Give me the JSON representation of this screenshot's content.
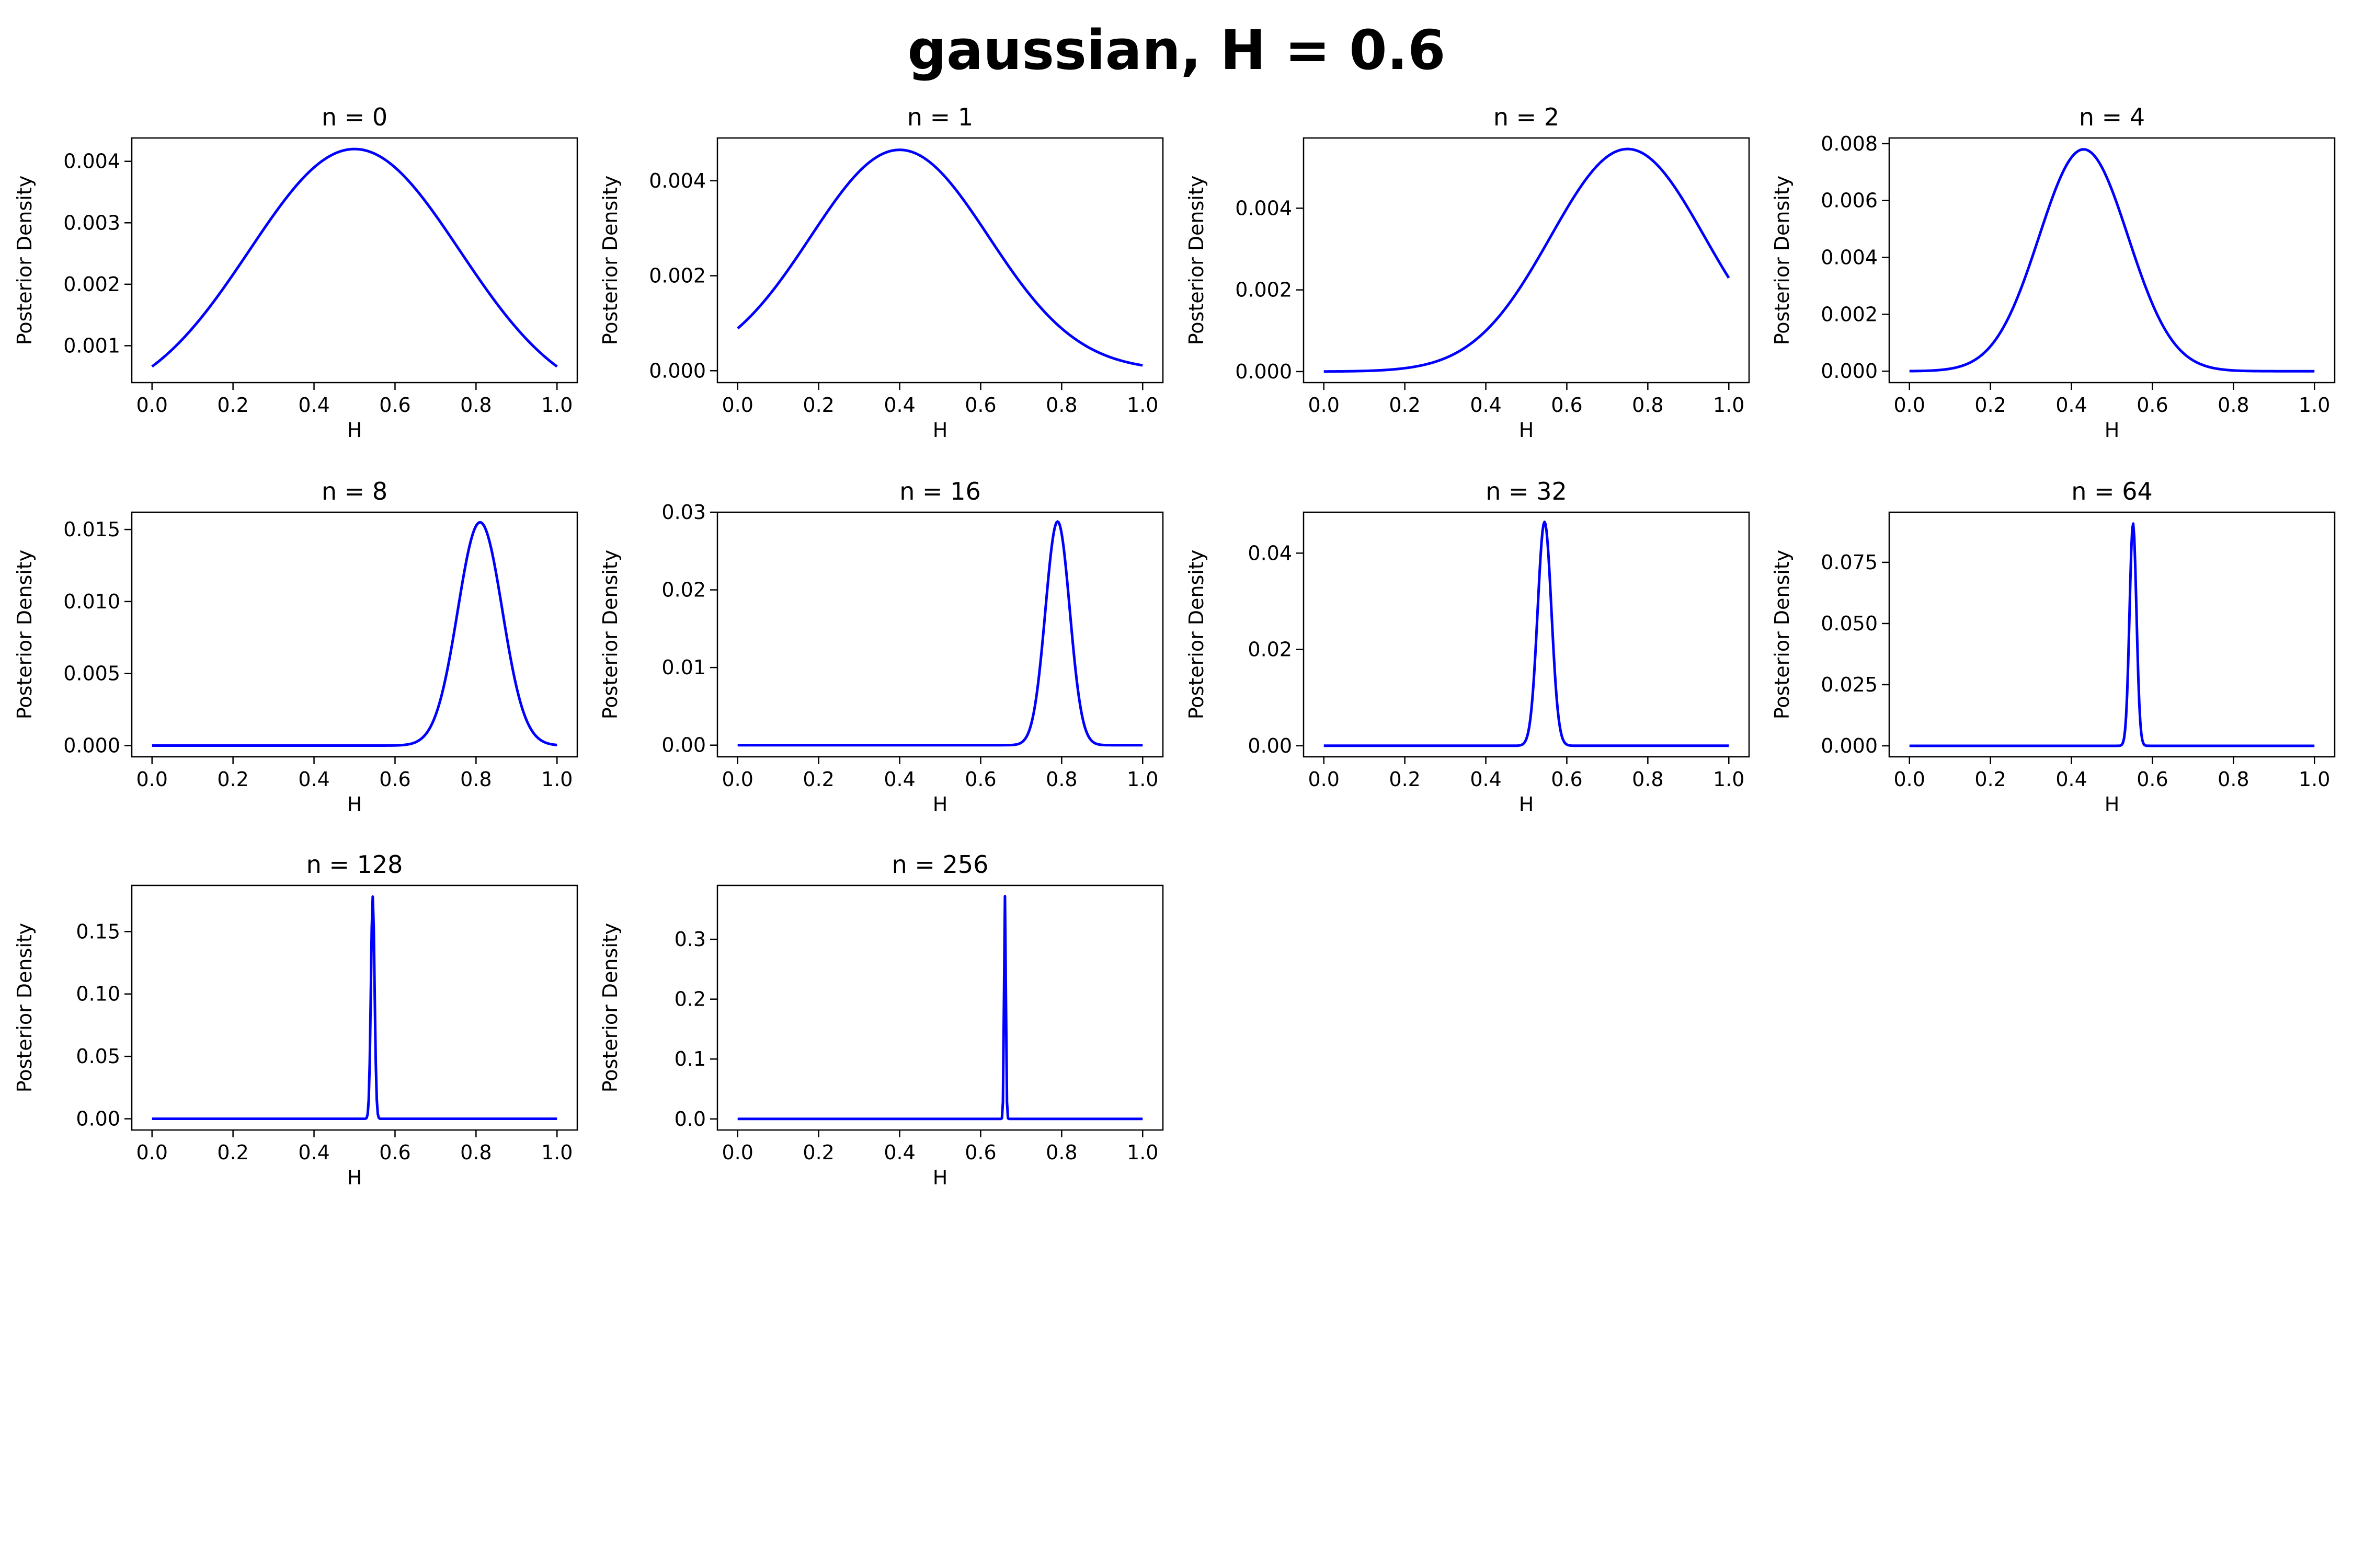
{
  "suptitle": "gaussian, H = 0.6",
  "colors": {
    "line": "#0000ff",
    "axis": "#000000",
    "background": "#ffffff"
  },
  "chart_data": [
    {
      "type": "line",
      "title": "n =  0",
      "xlabel": "H",
      "ylabel": "Posterior Density",
      "xlim": [
        -0.05,
        1.05
      ],
      "ylim": [
        0.0004,
        0.00438
      ],
      "xticks": [
        "0.0",
        "0.2",
        "0.4",
        "0.6",
        "0.8",
        "1.0"
      ],
      "yticks": [
        "0.001",
        "0.002",
        "0.003",
        "0.004"
      ],
      "curve": {
        "shape": "gaussian",
        "peak_x": 0.5,
        "peak_y": 0.0042,
        "sigma": 0.26,
        "baseline": 0
      }
    },
    {
      "type": "line",
      "title": "n =  1",
      "xlabel": "H",
      "ylabel": "Posterior Density",
      "xlim": [
        -0.05,
        1.05
      ],
      "ylim": [
        -0.00025,
        0.0049
      ],
      "xticks": [
        "0.0",
        "0.2",
        "0.4",
        "0.6",
        "0.8",
        "1.0"
      ],
      "yticks": [
        "0.000",
        "0.002",
        "0.004"
      ],
      "curve": {
        "shape": "gaussian",
        "peak_x": 0.4,
        "peak_y": 0.00465,
        "sigma": 0.22,
        "baseline": 0
      }
    },
    {
      "type": "line",
      "title": "n =  2",
      "xlabel": "H",
      "ylabel": "Posterior Density",
      "xlim": [
        -0.05,
        1.05
      ],
      "ylim": [
        -0.00027,
        0.00572
      ],
      "xticks": [
        "0.0",
        "0.2",
        "0.4",
        "0.6",
        "0.8",
        "1.0"
      ],
      "yticks": [
        "0.000",
        "0.002",
        "0.004"
      ],
      "curve": {
        "shape": "gaussian",
        "peak_x": 0.75,
        "peak_y": 0.00545,
        "sigma": 0.19,
        "baseline": 0
      }
    },
    {
      "type": "line",
      "title": "n =  4",
      "xlabel": "H",
      "ylabel": "Posterior Density",
      "xlim": [
        -0.05,
        1.05
      ],
      "ylim": [
        -0.0004,
        0.0082
      ],
      "xticks": [
        "0.0",
        "0.2",
        "0.4",
        "0.6",
        "0.8",
        "1.0"
      ],
      "yticks": [
        "0.000",
        "0.002",
        "0.004",
        "0.006",
        "0.008"
      ],
      "curve": {
        "shape": "gaussian",
        "peak_x": 0.43,
        "peak_y": 0.0078,
        "sigma": 0.11,
        "baseline": 0
      }
    },
    {
      "type": "line",
      "title": "n =  8",
      "xlabel": "H",
      "ylabel": "Posterior Density",
      "xlim": [
        -0.05,
        1.05
      ],
      "ylim": [
        -0.00078,
        0.0162
      ],
      "xticks": [
        "0.0",
        "0.2",
        "0.4",
        "0.6",
        "0.8",
        "1.0"
      ],
      "yticks": [
        "0.000",
        "0.005",
        "0.010",
        "0.015"
      ],
      "curve": {
        "shape": "gaussian",
        "peak_x": 0.81,
        "peak_y": 0.0155,
        "sigma": 0.055,
        "baseline": 0
      }
    },
    {
      "type": "line",
      "title": "n =  16",
      "xlabel": "H",
      "ylabel": "Posterior Density",
      "xlim": [
        -0.05,
        1.05
      ],
      "ylim": [
        -0.0015,
        0.03
      ],
      "xticks": [
        "0.0",
        "0.2",
        "0.4",
        "0.6",
        "0.8",
        "1.0"
      ],
      "yticks": [
        "0.00",
        "0.01",
        "0.02",
        "0.03"
      ],
      "curve": {
        "shape": "gaussian",
        "peak_x": 0.79,
        "peak_y": 0.0288,
        "sigma": 0.03,
        "baseline": 0
      }
    },
    {
      "type": "line",
      "title": "n =  32",
      "xlabel": "H",
      "ylabel": "Posterior Density",
      "xlim": [
        -0.05,
        1.05
      ],
      "ylim": [
        -0.0023,
        0.0485
      ],
      "xticks": [
        "0.0",
        "0.2",
        "0.4",
        "0.6",
        "0.8",
        "1.0"
      ],
      "yticks": [
        "0.00",
        "0.02",
        "0.04"
      ],
      "curve": {
        "shape": "gaussian",
        "peak_x": 0.545,
        "peak_y": 0.0465,
        "sigma": 0.017,
        "baseline": 0
      }
    },
    {
      "type": "line",
      "title": "n =  64",
      "xlabel": "H",
      "ylabel": "Posterior Density",
      "xlim": [
        -0.05,
        1.05
      ],
      "ylim": [
        -0.0045,
        0.0955
      ],
      "xticks": [
        "0.0",
        "0.2",
        "0.4",
        "0.6",
        "0.8",
        "1.0"
      ],
      "yticks": [
        "0.000",
        "0.025",
        "0.050",
        "0.075"
      ],
      "curve": {
        "shape": "gaussian",
        "peak_x": 0.552,
        "peak_y": 0.091,
        "sigma": 0.0085,
        "baseline": 0
      }
    },
    {
      "type": "line",
      "title": "n =  128",
      "xlabel": "H",
      "ylabel": "Posterior Density",
      "xlim": [
        -0.05,
        1.05
      ],
      "ylim": [
        -0.009,
        0.187
      ],
      "xticks": [
        "0.0",
        "0.2",
        "0.4",
        "0.6",
        "0.8",
        "1.0"
      ],
      "yticks": [
        "0.00",
        "0.05",
        "0.10",
        "0.15"
      ],
      "curve": {
        "shape": "gaussian",
        "peak_x": 0.545,
        "peak_y": 0.178,
        "sigma": 0.0045,
        "baseline": 0
      }
    },
    {
      "type": "line",
      "title": "n =  256",
      "xlabel": "H",
      "ylabel": "Posterior Density",
      "xlim": [
        -0.05,
        1.05
      ],
      "ylim": [
        -0.0185,
        0.39
      ],
      "xticks": [
        "0.0",
        "0.2",
        "0.4",
        "0.6",
        "0.8",
        "1.0"
      ],
      "yticks": [
        "0.0",
        "0.1",
        "0.2",
        "0.3"
      ],
      "curve": {
        "shape": "gaussian",
        "peak_x": 0.66,
        "peak_y": 0.372,
        "sigma": 0.0022,
        "baseline": 0
      }
    }
  ]
}
